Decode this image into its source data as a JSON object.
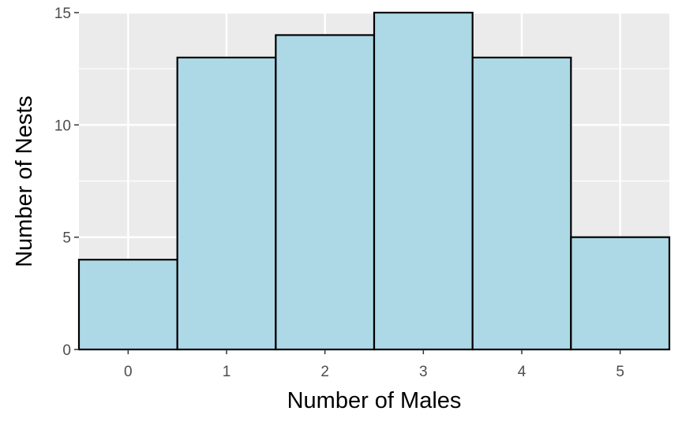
{
  "chart_data": {
    "type": "bar",
    "title": "",
    "xlabel": "Number of Males",
    "ylabel": "Number of Nests",
    "categories": [
      "0",
      "1",
      "2",
      "3",
      "4",
      "5"
    ],
    "values": [
      4,
      13,
      14,
      15,
      13,
      5
    ],
    "ylim": [
      0,
      15
    ],
    "yticks": [
      0,
      5,
      10,
      15
    ],
    "grid": true,
    "legend": "none",
    "colors": {
      "bar_fill": "#add8e6",
      "bar_stroke": "#000000",
      "panel_background": "#ebebeb",
      "grid_line": "#ffffff",
      "tick_text": "#4d4d4d",
      "axis_title": "#000000"
    }
  }
}
